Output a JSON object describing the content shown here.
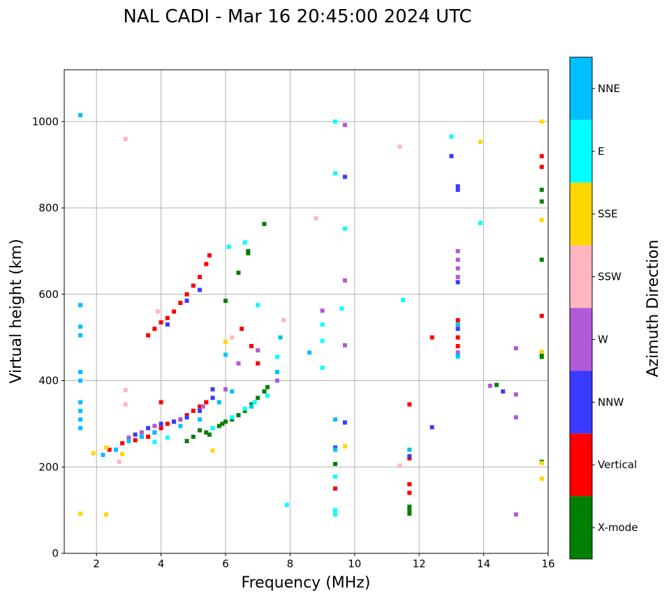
{
  "chart_data": {
    "type": "scatter",
    "title": "NAL CADI - Mar 16 20:45:00 2024 UTC",
    "xlabel": "Frequency (MHz)",
    "ylabel": "Virtual height (km)",
    "xlim": [
      1,
      16
    ],
    "ylim": [
      0,
      1120
    ],
    "xticks": [
      2,
      4,
      6,
      8,
      10,
      12,
      14,
      16
    ],
    "yticks": [
      0,
      200,
      400,
      600,
      800,
      1000
    ],
    "grid": true,
    "colorbar": {
      "title": "Azimuth Direction",
      "categories": [
        "X-mode",
        "Vertical",
        "NNW",
        "W",
        "SSW",
        "SSE",
        "E",
        "NNE"
      ],
      "colors": [
        "#008000",
        "#ff0000",
        "#3a3aff",
        "#b159d6",
        "#ffb6c1",
        "#ffd700",
        "#00ffff",
        "#00bfff"
      ]
    },
    "series": [
      {
        "name": "X-mode",
        "points": [
          [
            5.0,
            270
          ],
          [
            5.2,
            285
          ],
          [
            5.4,
            280
          ],
          [
            5.6,
            290
          ],
          [
            5.8,
            295
          ],
          [
            5.9,
            300
          ],
          [
            6.0,
            305
          ],
          [
            6.2,
            310
          ],
          [
            6.4,
            320
          ],
          [
            6.6,
            330
          ],
          [
            6.8,
            345
          ],
          [
            7.0,
            360
          ],
          [
            7.2,
            375
          ],
          [
            7.3,
            385
          ],
          [
            6.4,
            650
          ],
          [
            6.7,
            695
          ],
          [
            6.7,
            700
          ],
          [
            7.2,
            763
          ],
          [
            6.0,
            585
          ],
          [
            11.7,
            100
          ],
          [
            11.7,
            108
          ],
          [
            11.7,
            92
          ],
          [
            9.4,
            207
          ],
          [
            14.4,
            390
          ],
          [
            15.8,
            212
          ],
          [
            15.8,
            455
          ],
          [
            15.8,
            462
          ],
          [
            15.8,
            680
          ],
          [
            15.8,
            815
          ],
          [
            15.8,
            842
          ],
          [
            4.8,
            260
          ],
          [
            5.5,
            275
          ]
        ]
      },
      {
        "name": "Vertical",
        "points": [
          [
            2.4,
            240
          ],
          [
            2.8,
            255
          ],
          [
            3.2,
            262
          ],
          [
            3.6,
            270
          ],
          [
            3.8,
            280
          ],
          [
            4.0,
            290
          ],
          [
            4.2,
            300
          ],
          [
            4.4,
            305
          ],
          [
            4.6,
            310
          ],
          [
            4.8,
            320
          ],
          [
            5.0,
            330
          ],
          [
            5.2,
            340
          ],
          [
            5.4,
            350
          ],
          [
            3.6,
            505
          ],
          [
            3.8,
            520
          ],
          [
            4.0,
            535
          ],
          [
            4.2,
            545
          ],
          [
            4.4,
            560
          ],
          [
            4.6,
            580
          ],
          [
            4.8,
            600
          ],
          [
            5.0,
            620
          ],
          [
            5.2,
            640
          ],
          [
            5.4,
            670
          ],
          [
            5.5,
            690
          ],
          [
            6.5,
            520
          ],
          [
            6.8,
            480
          ],
          [
            7.0,
            440
          ],
          [
            11.7,
            140
          ],
          [
            11.7,
            160
          ],
          [
            11.7,
            220
          ],
          [
            11.7,
            345
          ],
          [
            12.4,
            500
          ],
          [
            13.2,
            480
          ],
          [
            13.2,
            500
          ],
          [
            13.2,
            540
          ],
          [
            15.8,
            550
          ],
          [
            15.8,
            895
          ],
          [
            15.8,
            920
          ],
          [
            9.4,
            150
          ],
          [
            4.0,
            350
          ]
        ]
      },
      {
        "name": "NNW",
        "points": [
          [
            3.2,
            275
          ],
          [
            3.6,
            290
          ],
          [
            4.0,
            300
          ],
          [
            4.4,
            305
          ],
          [
            4.8,
            315
          ],
          [
            5.2,
            330
          ],
          [
            5.6,
            360
          ],
          [
            5.6,
            380
          ],
          [
            4.2,
            530
          ],
          [
            4.8,
            585
          ],
          [
            5.2,
            610
          ],
          [
            11.7,
            225
          ],
          [
            12.4,
            292
          ],
          [
            13.2,
            520
          ],
          [
            13.2,
            628
          ],
          [
            13.2,
            842
          ],
          [
            13.2,
            850
          ],
          [
            13.0,
            920
          ],
          [
            14.6,
            375
          ],
          [
            9.4,
            245
          ],
          [
            9.7,
            303
          ],
          [
            9.7,
            872
          ]
        ]
      },
      {
        "name": "W",
        "points": [
          [
            3.0,
            268
          ],
          [
            3.4,
            280
          ],
          [
            3.8,
            295
          ],
          [
            4.6,
            310
          ],
          [
            5.3,
            340
          ],
          [
            6.0,
            380
          ],
          [
            6.4,
            440
          ],
          [
            7.0,
            470
          ],
          [
            7.6,
            400
          ],
          [
            13.2,
            465
          ],
          [
            13.2,
            640
          ],
          [
            13.2,
            660
          ],
          [
            13.2,
            680
          ],
          [
            13.2,
            700
          ],
          [
            14.2,
            388
          ],
          [
            15.0,
            368
          ],
          [
            15.0,
            475
          ],
          [
            15.0,
            315
          ],
          [
            15.0,
            90
          ],
          [
            9.7,
            482
          ],
          [
            9.7,
            632
          ],
          [
            9.7,
            992
          ],
          [
            9.0,
            562
          ]
        ]
      },
      {
        "name": "SSW",
        "points": [
          [
            2.9,
            960
          ],
          [
            2.9,
            378
          ],
          [
            2.9,
            345
          ],
          [
            8.8,
            776
          ],
          [
            11.4,
            942
          ],
          [
            11.4,
            203
          ],
          [
            7.8,
            540
          ],
          [
            6.2,
            500
          ],
          [
            3.9,
            560
          ],
          [
            2.7,
            212
          ]
        ]
      },
      {
        "name": "SSE",
        "points": [
          [
            1.5,
            92
          ],
          [
            2.3,
            90
          ],
          [
            1.9,
            232
          ],
          [
            2.3,
            245
          ],
          [
            2.8,
            230
          ],
          [
            5.6,
            238
          ],
          [
            6.0,
            490
          ],
          [
            9.7,
            248
          ],
          [
            13.9,
            953
          ],
          [
            15.8,
            173
          ],
          [
            15.8,
            1000
          ],
          [
            15.8,
            772
          ],
          [
            15.8,
            467
          ],
          [
            15.8,
            209
          ]
        ]
      },
      {
        "name": "E",
        "points": [
          [
            3.8,
            258
          ],
          [
            4.2,
            268
          ],
          [
            5.6,
            290
          ],
          [
            6.2,
            315
          ],
          [
            6.6,
            335
          ],
          [
            6.9,
            350
          ],
          [
            7.3,
            365
          ],
          [
            6.1,
            710
          ],
          [
            6.6,
            720
          ],
          [
            7.0,
            575
          ],
          [
            7.6,
            455
          ],
          [
            7.9,
            112
          ],
          [
            9.0,
            430
          ],
          [
            9.0,
            492
          ],
          [
            9.0,
            530
          ],
          [
            9.4,
            880
          ],
          [
            9.4,
            1000
          ],
          [
            9.4,
            90
          ],
          [
            9.4,
            100
          ],
          [
            9.4,
            178
          ],
          [
            9.7,
            752
          ],
          [
            9.6,
            567
          ],
          [
            11.5,
            587
          ],
          [
            13.2,
            455
          ],
          [
            13.0,
            965
          ],
          [
            13.9,
            765
          ]
        ]
      },
      {
        "name": "NNE",
        "points": [
          [
            1.5,
            1015
          ],
          [
            1.5,
            575
          ],
          [
            1.5,
            525
          ],
          [
            1.5,
            505
          ],
          [
            1.5,
            420
          ],
          [
            1.5,
            400
          ],
          [
            1.5,
            350
          ],
          [
            1.5,
            330
          ],
          [
            1.5,
            310
          ],
          [
            1.5,
            290
          ],
          [
            2.2,
            228
          ],
          [
            2.6,
            240
          ],
          [
            3.0,
            260
          ],
          [
            3.4,
            270
          ],
          [
            3.8,
            280
          ],
          [
            4.6,
            295
          ],
          [
            5.2,
            310
          ],
          [
            5.8,
            350
          ],
          [
            6.2,
            375
          ],
          [
            6.8,
            340
          ],
          [
            7.6,
            420
          ],
          [
            7.7,
            500
          ],
          [
            8.6,
            465
          ],
          [
            9.4,
            310
          ],
          [
            9.4,
            240
          ],
          [
            11.7,
            240
          ],
          [
            13.2,
            458
          ],
          [
            13.2,
            530
          ],
          [
            6.0,
            460
          ]
        ]
      }
    ]
  }
}
